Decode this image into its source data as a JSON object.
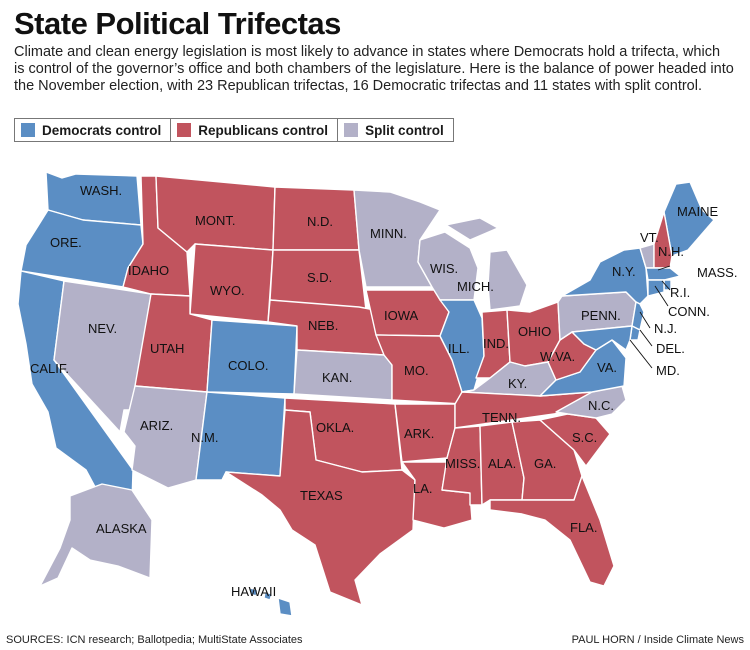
{
  "title": "State Political Trifectas",
  "intro": "Climate and clean energy legislation is most likely to advance in states where Democrats hold a trifecta, which is control of the governor’s office and both chambers of the legislature. Here is the balance of power headed into the November election, with 23 Republican trifectas, 16 Democratic trifectas and 11 states with split control.",
  "colors": {
    "dem": "#5b8ec4",
    "rep": "#c1545e",
    "split": "#b3b1c8"
  },
  "legend": [
    {
      "key": "dem",
      "label": "Democrats control"
    },
    {
      "key": "rep",
      "label": "Republicans control"
    },
    {
      "key": "split",
      "label": "Split control"
    }
  ],
  "states": [
    {
      "label": "WASH.",
      "control": "dem"
    },
    {
      "label": "ORE.",
      "control": "dem"
    },
    {
      "label": "CALIF.",
      "control": "dem"
    },
    {
      "label": "NEV.",
      "control": "split"
    },
    {
      "label": "IDAHO",
      "control": "rep"
    },
    {
      "label": "MONT.",
      "control": "rep"
    },
    {
      "label": "WYO.",
      "control": "rep"
    },
    {
      "label": "UTAH",
      "control": "rep"
    },
    {
      "label": "ARIZ.",
      "control": "split"
    },
    {
      "label": "COLO.",
      "control": "dem"
    },
    {
      "label": "N.M.",
      "control": "dem"
    },
    {
      "label": "N.D.",
      "control": "rep"
    },
    {
      "label": "S.D.",
      "control": "rep"
    },
    {
      "label": "NEB.",
      "control": "rep"
    },
    {
      "label": "KAN.",
      "control": "split"
    },
    {
      "label": "OKLA.",
      "control": "rep"
    },
    {
      "label": "TEXAS",
      "control": "rep"
    },
    {
      "label": "MINN.",
      "control": "split"
    },
    {
      "label": "IOWA",
      "control": "rep"
    },
    {
      "label": "MO.",
      "control": "rep"
    },
    {
      "label": "ARK.",
      "control": "rep"
    },
    {
      "label": "LA.",
      "control": "rep"
    },
    {
      "label": "WIS.",
      "control": "split"
    },
    {
      "label": "ILL.",
      "control": "dem"
    },
    {
      "label": "MICH.",
      "control": "split"
    },
    {
      "label": "IND.",
      "control": "rep"
    },
    {
      "label": "OHIO",
      "control": "rep"
    },
    {
      "label": "KY.",
      "control": "split"
    },
    {
      "label": "TENN.",
      "control": "rep"
    },
    {
      "label": "MISS.",
      "control": "rep"
    },
    {
      "label": "ALA.",
      "control": "rep"
    },
    {
      "label": "GA.",
      "control": "rep"
    },
    {
      "label": "FLA.",
      "control": "rep"
    },
    {
      "label": "S.C.",
      "control": "rep"
    },
    {
      "label": "N.C.",
      "control": "split"
    },
    {
      "label": "VA.",
      "control": "dem"
    },
    {
      "label": "W.VA.",
      "control": "rep"
    },
    {
      "label": "PENN.",
      "control": "split"
    },
    {
      "label": "N.Y.",
      "control": "dem"
    },
    {
      "label": "MAINE",
      "control": "dem"
    },
    {
      "label": "VT.",
      "control": "split"
    },
    {
      "label": "N.H.",
      "control": "rep"
    },
    {
      "label": "MASS.",
      "control": "dem"
    },
    {
      "label": "R.I.",
      "control": "dem"
    },
    {
      "label": "CONN.",
      "control": "dem"
    },
    {
      "label": "N.J.",
      "control": "dem"
    },
    {
      "label": "DEL.",
      "control": "dem"
    },
    {
      "label": "MD.",
      "control": "dem"
    },
    {
      "label": "ALASKA",
      "control": "split"
    },
    {
      "label": "HAWAII",
      "control": "dem"
    }
  ],
  "footer": {
    "sources": "SOURCES: ICN research; Ballotpedia; MultiState Associates",
    "credit": "PAUL HORN / Inside Climate News"
  }
}
